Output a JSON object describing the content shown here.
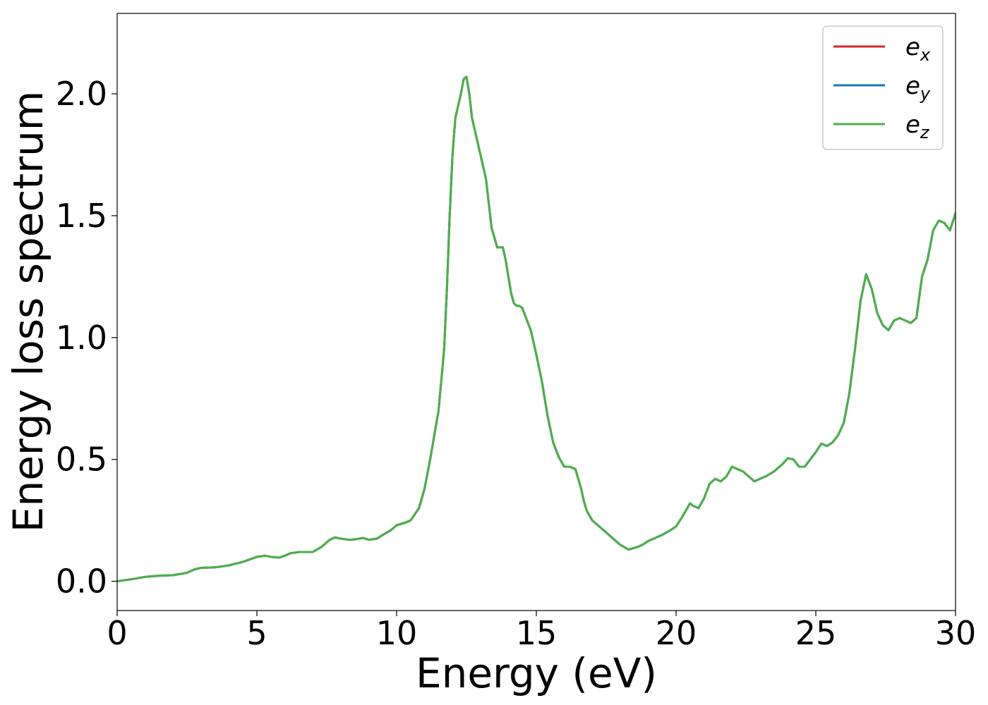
{
  "chart_data": {
    "type": "line",
    "xlabel": "Energy (eV)",
    "ylabel": "Energy loss spectrum",
    "xlim": [
      0,
      30
    ],
    "ylim": [
      -0.12,
      2.33
    ],
    "xticks": [
      0,
      5,
      10,
      15,
      20,
      25,
      30
    ],
    "yticks": [
      0.0,
      0.5,
      1.0,
      1.5,
      2.0
    ],
    "xtick_labels": [
      "0",
      "5",
      "10",
      "15",
      "20",
      "25",
      "30"
    ],
    "ytick_labels": [
      "0.0",
      "0.5",
      "1.0",
      "1.5",
      "2.0"
    ],
    "grid": false,
    "legend_position": "top-right",
    "series": [
      {
        "name": "e",
        "subscript": "x",
        "color": "#d62728"
      },
      {
        "name": "e",
        "subscript": "y",
        "color": "#1f77b4"
      },
      {
        "name": "e",
        "subscript": "z",
        "color": "#4daf4a"
      }
    ],
    "x": [
      0,
      0.5,
      1.0,
      1.5,
      2.0,
      2.5,
      2.8,
      3.0,
      3.5,
      4.0,
      4.5,
      5.0,
      5.3,
      5.5,
      5.8,
      6.0,
      6.2,
      6.5,
      7.0,
      7.3,
      7.6,
      7.8,
      8.0,
      8.3,
      8.5,
      8.8,
      9.0,
      9.3,
      9.5,
      9.8,
      10.0,
      10.3,
      10.5,
      10.8,
      11.0,
      11.2,
      11.5,
      11.7,
      11.8,
      11.9,
      12.0,
      12.1,
      12.2,
      12.3,
      12.4,
      12.5,
      12.6,
      12.7,
      12.8,
      13.0,
      13.2,
      13.4,
      13.6,
      13.7,
      13.8,
      13.9,
      14.0,
      14.1,
      14.2,
      14.3,
      14.4,
      14.5,
      14.6,
      14.7,
      14.8,
      15.0,
      15.2,
      15.4,
      15.6,
      15.8,
      16.0,
      16.2,
      16.4,
      16.6,
      16.7,
      16.8,
      17.0,
      17.2,
      17.5,
      18.0,
      18.3,
      18.6,
      18.8,
      19.0,
      19.3,
      19.5,
      19.8,
      20.0,
      20.2,
      20.4,
      20.5,
      20.6,
      20.8,
      21.0,
      21.2,
      21.4,
      21.6,
      21.8,
      22.0,
      22.2,
      22.4,
      22.6,
      22.8,
      23.0,
      23.2,
      23.5,
      23.8,
      24.0,
      24.2,
      24.4,
      24.6,
      24.8,
      25.0,
      25.2,
      25.4,
      25.6,
      25.8,
      26.0,
      26.2,
      26.4,
      26.6,
      26.8,
      27.0,
      27.2,
      27.4,
      27.6,
      27.8,
      28.0,
      28.2,
      28.4,
      28.6,
      28.8,
      29.0,
      29.2,
      29.4,
      29.6,
      29.8,
      30.0
    ],
    "values": [
      0.0,
      0.008,
      0.018,
      0.023,
      0.025,
      0.035,
      0.05,
      0.055,
      0.057,
      0.065,
      0.08,
      0.1,
      0.105,
      0.1,
      0.097,
      0.105,
      0.115,
      0.12,
      0.12,
      0.14,
      0.17,
      0.18,
      0.175,
      0.17,
      0.172,
      0.178,
      0.17,
      0.175,
      0.19,
      0.21,
      0.23,
      0.24,
      0.25,
      0.3,
      0.38,
      0.5,
      0.7,
      0.95,
      1.2,
      1.5,
      1.75,
      1.9,
      1.95,
      2.0,
      2.06,
      2.07,
      2.0,
      1.9,
      1.85,
      1.75,
      1.65,
      1.45,
      1.37,
      1.37,
      1.37,
      1.32,
      1.25,
      1.18,
      1.14,
      1.13,
      1.13,
      1.12,
      1.09,
      1.06,
      1.03,
      0.93,
      0.82,
      0.68,
      0.57,
      0.51,
      0.47,
      0.47,
      0.46,
      0.38,
      0.33,
      0.29,
      0.25,
      0.23,
      0.2,
      0.15,
      0.13,
      0.14,
      0.15,
      0.165,
      0.18,
      0.19,
      0.21,
      0.225,
      0.26,
      0.3,
      0.32,
      0.31,
      0.3,
      0.34,
      0.4,
      0.42,
      0.41,
      0.43,
      0.47,
      0.46,
      0.45,
      0.43,
      0.41,
      0.42,
      0.43,
      0.45,
      0.48,
      0.505,
      0.5,
      0.47,
      0.47,
      0.5,
      0.53,
      0.565,
      0.555,
      0.57,
      0.6,
      0.65,
      0.77,
      0.95,
      1.15,
      1.26,
      1.2,
      1.1,
      1.05,
      1.03,
      1.07,
      1.08,
      1.07,
      1.06,
      1.08,
      1.25,
      1.32,
      1.44,
      1.48,
      1.47,
      1.44,
      1.51
    ]
  }
}
